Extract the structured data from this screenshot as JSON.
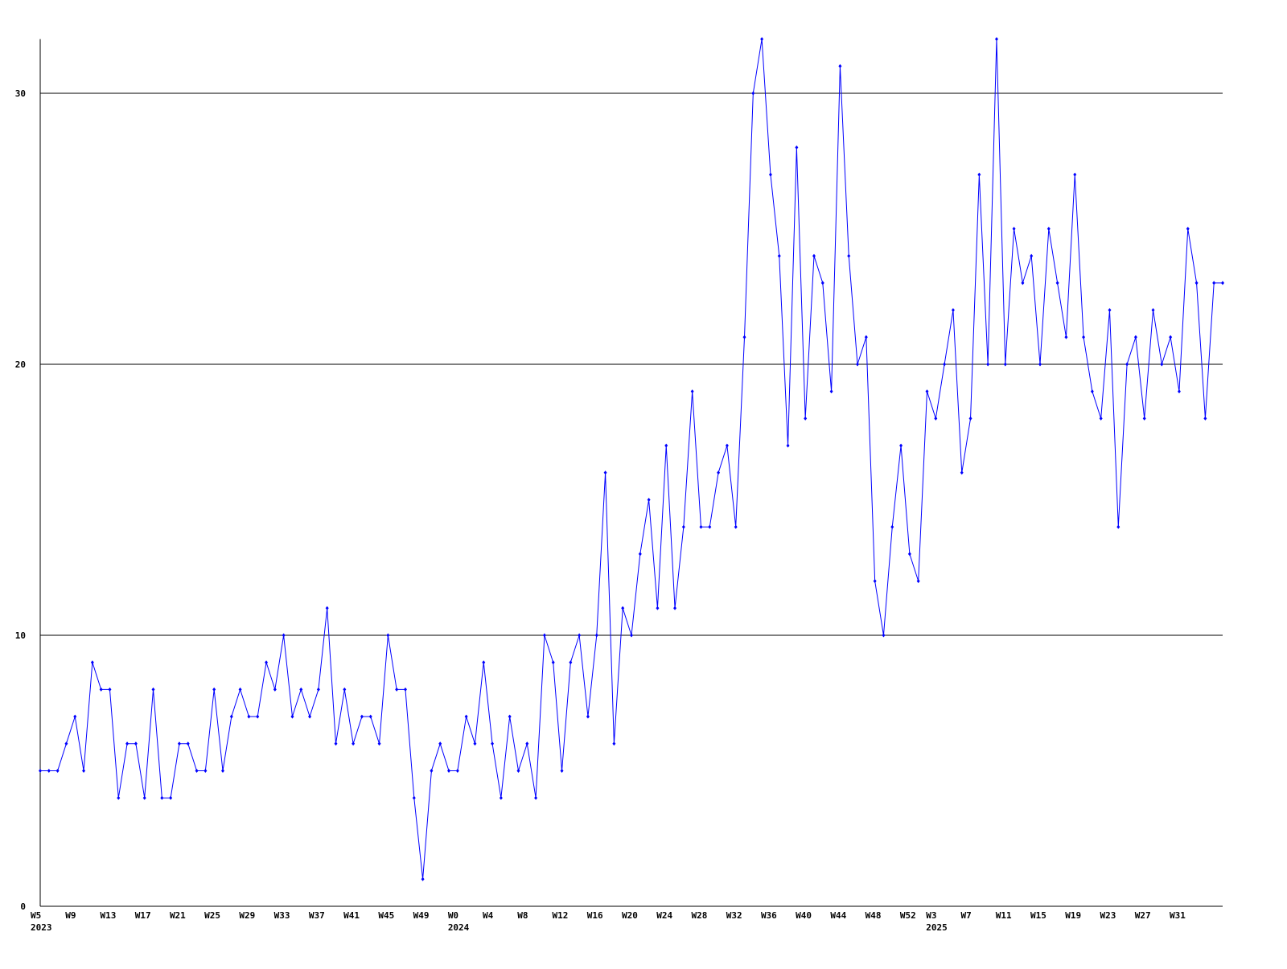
{
  "chart_data": {
    "type": "line",
    "categories": [
      "W5",
      null,
      null,
      null,
      "W9",
      null,
      null,
      null,
      "W13",
      null,
      null,
      null,
      "W17",
      null,
      null,
      null,
      "W21",
      null,
      null,
      null,
      "W25",
      null,
      null,
      null,
      "W29",
      null,
      null,
      null,
      "W33",
      null,
      null,
      null,
      "W37",
      null,
      null,
      null,
      "W41",
      null,
      null,
      null,
      "W45",
      null,
      null,
      null,
      "W49",
      null,
      null,
      null,
      "W0",
      null,
      null,
      null,
      "W4",
      null,
      null,
      null,
      "W8",
      null,
      null,
      null,
      "W12",
      null,
      null,
      null,
      "W16",
      null,
      null,
      null,
      "W20",
      null,
      null,
      null,
      "W24",
      null,
      null,
      null,
      "W28",
      null,
      null,
      null,
      "W32",
      null,
      null,
      null,
      "W36",
      null,
      null,
      null,
      "W40",
      null,
      null,
      null,
      "W44",
      null,
      null,
      null,
      "W48",
      null,
      null,
      null,
      "W52",
      null,
      null,
      "W3",
      null,
      null,
      null,
      "W7",
      null,
      null,
      null,
      "W11",
      null,
      null,
      null,
      "W15",
      null,
      null,
      null,
      "W19",
      null,
      null,
      null,
      "W23",
      null,
      null,
      null,
      "W27",
      null,
      null,
      null,
      "W31",
      null,
      null,
      null,
      null,
      null
    ],
    "years": [
      "2023",
      null,
      null,
      null,
      null,
      null,
      null,
      null,
      null,
      null,
      null,
      null,
      null,
      null,
      null,
      null,
      null,
      null,
      null,
      null,
      null,
      null,
      null,
      null,
      null,
      null,
      null,
      null,
      null,
      null,
      null,
      null,
      null,
      null,
      null,
      null,
      null,
      null,
      null,
      null,
      null,
      null,
      null,
      null,
      null,
      null,
      null,
      null,
      "2024",
      null,
      null,
      null,
      null,
      null,
      null,
      null,
      null,
      null,
      null,
      null,
      null,
      null,
      null,
      null,
      null,
      null,
      null,
      null,
      null,
      null,
      null,
      null,
      null,
      null,
      null,
      null,
      null,
      null,
      null,
      null,
      null,
      null,
      null,
      null,
      null,
      null,
      null,
      null,
      null,
      null,
      null,
      null,
      null,
      null,
      null,
      null,
      null,
      null,
      null,
      null,
      null,
      null,
      null,
      "2025",
      null,
      null,
      null,
      null,
      null,
      null,
      null,
      null,
      null,
      null,
      null,
      null,
      null,
      null,
      null,
      null,
      null,
      null,
      null,
      null,
      null,
      null,
      null,
      null,
      null,
      null,
      null,
      null,
      null,
      null,
      null,
      null,
      null
    ],
    "values": [
      5,
      5,
      5,
      6,
      7,
      5,
      9,
      8,
      8,
      4,
      6,
      6,
      4,
      8,
      4,
      4,
      6,
      6,
      5,
      5,
      8,
      5,
      7,
      8,
      7,
      7,
      9,
      8,
      10,
      7,
      8,
      7,
      8,
      11,
      6,
      8,
      6,
      7,
      7,
      6,
      10,
      8,
      8,
      4,
      1,
      5,
      6,
      5,
      5,
      7,
      6,
      9,
      6,
      4,
      7,
      5,
      6,
      4,
      10,
      9,
      5,
      9,
      10,
      7,
      10,
      16,
      6,
      11,
      10,
      13,
      15,
      11,
      17,
      11,
      14,
      19,
      14,
      14,
      16,
      17,
      14,
      21,
      30,
      32,
      27,
      24,
      17,
      28,
      18,
      24,
      23,
      19,
      31,
      24,
      20,
      21,
      12,
      10,
      14,
      17,
      13,
      12,
      19,
      18,
      20,
      22,
      16,
      18,
      27,
      20,
      32,
      20,
      25,
      23,
      24,
      20,
      25,
      23,
      21,
      27,
      21,
      19,
      18,
      22,
      14,
      20,
      21,
      18,
      22,
      20,
      21,
      19,
      25,
      23,
      18,
      23,
      23
    ],
    "color": "#0000ff",
    "ylim": [
      0,
      32
    ],
    "yticks": [
      0,
      10,
      20,
      30
    ],
    "grid": true
  }
}
